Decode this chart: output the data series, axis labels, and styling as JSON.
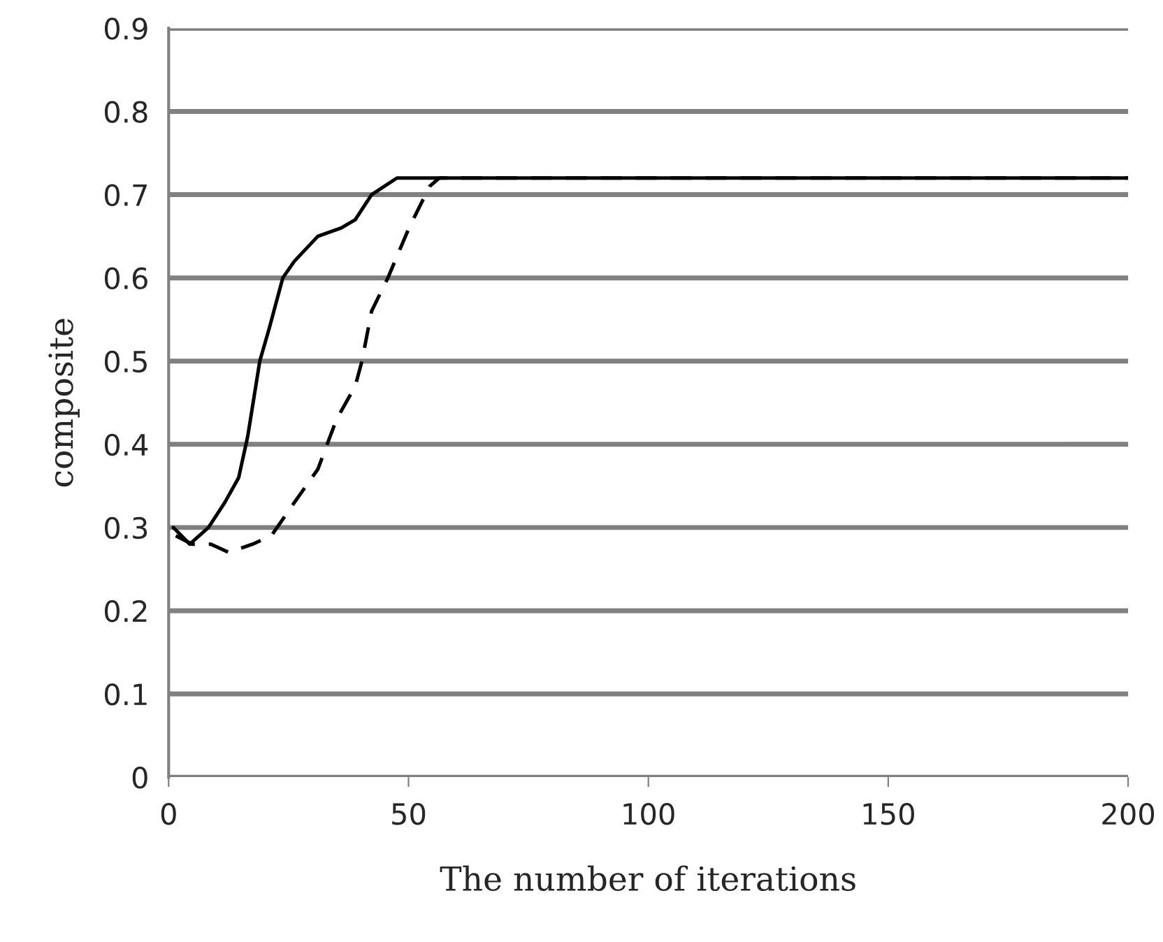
{
  "chart_data": {
    "type": "line",
    "xlabel": "The number of iterations",
    "ylabel": "composite",
    "xlim": [
      0,
      200
    ],
    "xticks": [
      0,
      50,
      100,
      150,
      200
    ],
    "ylim": [
      0,
      0.9
    ],
    "yticks": [
      0,
      0.1,
      0.2,
      0.3,
      0.4,
      0.5,
      0.6,
      0.7,
      0.8,
      0.9
    ],
    "grid": "y",
    "marker": "none",
    "series": [
      {
        "color": "#000000",
        "line_style": "solid",
        "x": [
          1,
          4.4,
          8.3,
          11.7,
          14.6,
          16.5,
          19,
          21,
          23.8,
          26.2,
          31.1,
          36,
          38.9,
          42.3,
          47.6,
          50.5,
          200
        ],
        "values": [
          0.3,
          0.28,
          0.3,
          0.33,
          0.36,
          0.41,
          0.5,
          0.54,
          0.6,
          0.62,
          0.65,
          0.66,
          0.67,
          0.7,
          0.72,
          0.72,
          0.72
        ]
      },
      {
        "color": "#000000",
        "line_style": "dashed",
        "x": [
          1.5,
          4.9,
          8.8,
          12.6,
          17.5,
          21.4,
          26.2,
          31.1,
          35,
          38.9,
          40.3,
          42.3,
          45.7,
          50.1,
          54.4,
          56.4,
          200
        ],
        "values": [
          0.29,
          0.28,
          0.28,
          0.27,
          0.28,
          0.29,
          0.33,
          0.37,
          0.43,
          0.47,
          0.5,
          0.56,
          0.6,
          0.66,
          0.71,
          0.72,
          0.72
        ]
      }
    ]
  }
}
